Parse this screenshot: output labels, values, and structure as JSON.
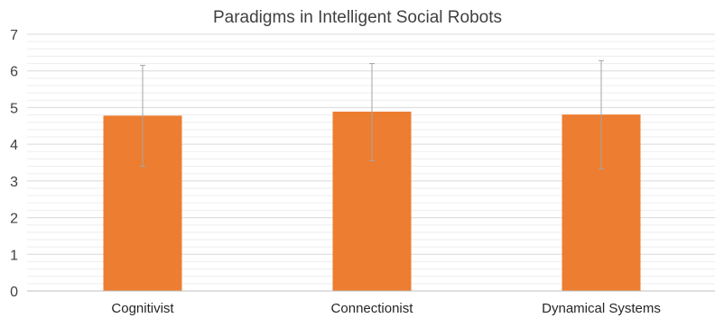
{
  "chart_data": {
    "type": "bar",
    "title": "Paradigms in Intelligent Social Robots",
    "xlabel": "",
    "ylabel": "",
    "categories": [
      "Cognitivist",
      "Connectionist",
      "Dynamical Systems"
    ],
    "values": [
      4.78,
      4.89,
      4.81
    ],
    "error_low": [
      3.4,
      3.55,
      3.33
    ],
    "error_high": [
      6.15,
      6.2,
      6.28
    ],
    "ylim": [
      0,
      7
    ],
    "yticks": [
      "0",
      "1",
      "2",
      "3",
      "4",
      "5",
      "6",
      "7"
    ],
    "grid": true,
    "legend": "none",
    "colors": {
      "bar": "#ED7D31",
      "error": "#A5A5A5",
      "grid": "#E0E0E0",
      "axis": "#BFBFBF"
    }
  }
}
